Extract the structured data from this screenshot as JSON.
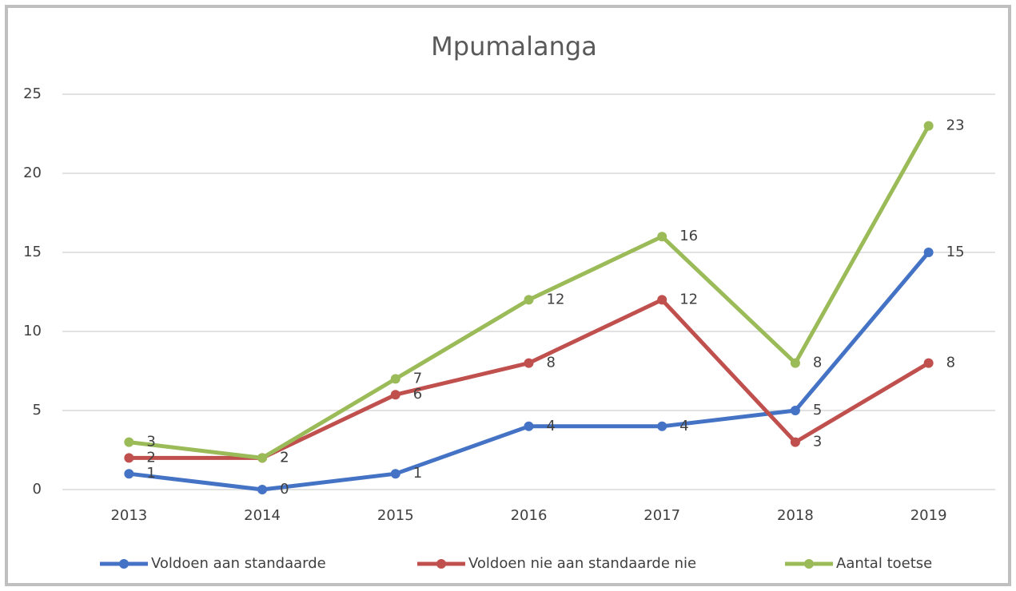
{
  "chart_data": {
    "type": "line",
    "title": "Mpumalanga",
    "categories": [
      "2013",
      "2014",
      "2015",
      "2016",
      "2017",
      "2018",
      "2019"
    ],
    "series": [
      {
        "name": "Voldoen aan standaarde",
        "color": "#4472c4",
        "values": [
          1,
          0,
          1,
          4,
          4,
          5,
          15
        ]
      },
      {
        "name": "Voldoen nie aan standaarde nie",
        "color": "#c0504d",
        "values": [
          2,
          2,
          6,
          8,
          12,
          3,
          8
        ]
      },
      {
        "name": "Aantal toetse",
        "color": "#9bbb59",
        "values": [
          3,
          2,
          7,
          12,
          16,
          8,
          23
        ]
      }
    ],
    "ylim": [
      0,
      25
    ],
    "yticks": [
      0,
      5,
      10,
      15,
      20,
      25
    ],
    "grid": true,
    "legend": "bottom"
  }
}
